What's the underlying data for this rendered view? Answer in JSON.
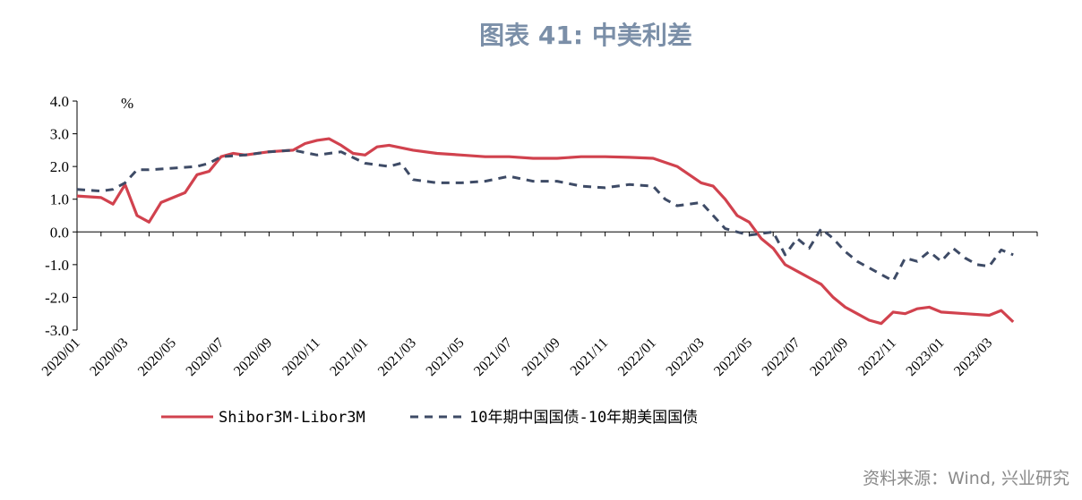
{
  "title": "图表 41: 中美利差",
  "source": "资料来源：Wind, 兴业研究",
  "chart_data": {
    "type": "line",
    "title": "图表 41: 中美利差",
    "ylabel": "%",
    "ylim": [
      -3.0,
      4.0
    ],
    "yticks": [
      "4.0",
      "3.0",
      "2.0",
      "1.0",
      "0.0",
      "-1.0",
      "-2.0",
      "-3.0"
    ],
    "x_ticks": [
      "2020/01",
      "2020/03",
      "2020/05",
      "2020/07",
      "2020/09",
      "2020/11",
      "2021/01",
      "2021/03",
      "2021/05",
      "2021/07",
      "2021/09",
      "2021/11",
      "2022/01",
      "2022/03",
      "2022/05",
      "2022/07",
      "2022/09",
      "2022/11",
      "2023/01",
      "2023/03"
    ],
    "grid": false,
    "legend_position": "bottom",
    "colors": {
      "series1": "#d1424e",
      "series2": "#3e4b66"
    },
    "series": [
      {
        "name": "Shibor3M-Libor3M",
        "x": [
          "2020/01",
          "2020/02",
          "2020/02",
          "2020/03",
          "2020/03",
          "2020/04",
          "2020/04",
          "2020/05",
          "2020/05",
          "2020/06",
          "2020/06",
          "2020/07",
          "2020/07",
          "2020/08",
          "2020/09",
          "2020/10",
          "2020/10",
          "2020/11",
          "2020/11",
          "2020/12",
          "2020/12",
          "2021/01",
          "2021/01",
          "2021/02",
          "2021/03",
          "2021/04",
          "2021/05",
          "2021/06",
          "2021/07",
          "2021/08",
          "2021/09",
          "2021/10",
          "2021/11",
          "2021/12",
          "2022/01",
          "2022/02",
          "2022/03",
          "2022/03",
          "2022/04",
          "2022/04",
          "2022/05",
          "2022/05",
          "2022/06",
          "2022/06",
          "2022/07",
          "2022/07",
          "2022/08",
          "2022/08",
          "2022/09",
          "2022/09",
          "2022/10",
          "2022/10",
          "2022/11",
          "2022/11",
          "2022/12",
          "2022/12",
          "2023/01",
          "2023/02",
          "2023/03",
          "2023/03",
          "2023/04"
        ],
        "values": [
          1.1,
          1.05,
          0.85,
          1.45,
          0.5,
          0.3,
          0.9,
          1.05,
          1.2,
          1.75,
          1.85,
          2.3,
          2.4,
          2.35,
          2.45,
          2.5,
          2.7,
          2.8,
          2.85,
          2.65,
          2.4,
          2.35,
          2.6,
          2.65,
          2.5,
          2.4,
          2.35,
          2.3,
          2.3,
          2.25,
          2.25,
          2.3,
          2.3,
          2.28,
          2.25,
          2.0,
          1.5,
          1.4,
          1.0,
          0.5,
          0.3,
          -0.2,
          -0.5,
          -1.0,
          -1.2,
          -1.4,
          -1.6,
          -2.0,
          -2.3,
          -2.5,
          -2.7,
          -2.8,
          -2.45,
          -2.5,
          -2.35,
          -2.3,
          -2.45,
          -2.5,
          -2.55,
          -2.4,
          -2.75
        ]
      },
      {
        "name": "10年期中国国债-10年期美国国债",
        "x": [
          "2020/01",
          "2020/02",
          "2020/02",
          "2020/03",
          "2020/03",
          "2020/04",
          "2020/05",
          "2020/06",
          "2020/06",
          "2020/07",
          "2020/08",
          "2020/09",
          "2020/10",
          "2020/11",
          "2020/12",
          "2021/01",
          "2021/02",
          "2021/02",
          "2021/03",
          "2021/04",
          "2021/05",
          "2021/06",
          "2021/07",
          "2021/08",
          "2021/09",
          "2021/10",
          "2021/11",
          "2021/12",
          "2022/01",
          "2022/01",
          "2022/02",
          "2022/03",
          "2022/03",
          "2022/04",
          "2022/04",
          "2022/05",
          "2022/06",
          "2022/06",
          "2022/07",
          "2022/07",
          "2022/08",
          "2022/08",
          "2022/09",
          "2022/09",
          "2022/10",
          "2022/10",
          "2022/11",
          "2022/11",
          "2022/12",
          "2022/12",
          "2023/01",
          "2023/01",
          "2023/02",
          "2023/02",
          "2023/03",
          "2023/03",
          "2023/04"
        ],
        "values": [
          1.3,
          1.25,
          1.3,
          1.5,
          1.9,
          1.9,
          1.95,
          2.0,
          2.1,
          2.3,
          2.35,
          2.45,
          2.5,
          2.35,
          2.45,
          2.1,
          2.0,
          2.1,
          1.6,
          1.5,
          1.5,
          1.55,
          1.7,
          1.55,
          1.55,
          1.4,
          1.35,
          1.45,
          1.4,
          1.0,
          0.8,
          0.9,
          0.5,
          0.1,
          0.0,
          -0.1,
          0.0,
          -0.7,
          -0.2,
          -0.5,
          0.1,
          -0.2,
          -0.6,
          -0.9,
          -1.1,
          -1.3,
          -1.5,
          -0.8,
          -0.9,
          -0.6,
          -0.9,
          -0.5,
          -0.8,
          -1.0,
          -1.05,
          -0.55,
          -0.7
        ]
      }
    ]
  }
}
